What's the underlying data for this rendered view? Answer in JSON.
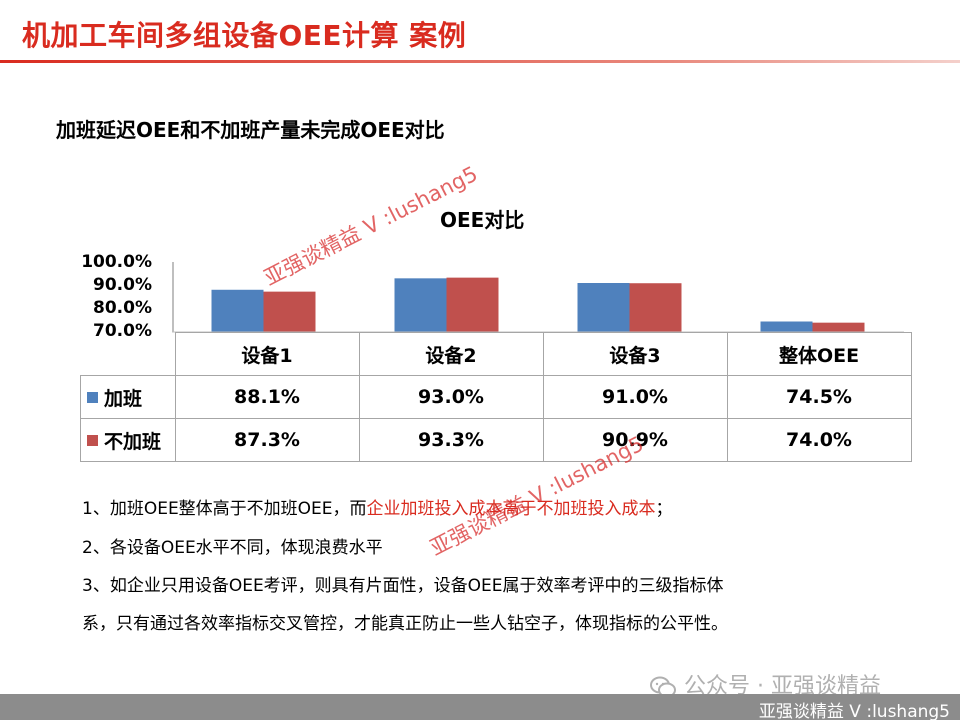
{
  "header": {
    "title": "机加工车间多组设备OEE计算 案例"
  },
  "subtitle": "加班延迟OEE和不加班产量未完成OEE对比",
  "chart_data": {
    "type": "bar",
    "title": "OEE对比",
    "categories": [
      "设备1",
      "设备2",
      "设备3",
      "整体OEE"
    ],
    "ylim": [
      0.7,
      1.0
    ],
    "yticks": [
      "100.0%",
      "90.0%",
      "80.0%",
      "70.0%"
    ],
    "series": [
      {
        "name": "加班",
        "color": "#4f81bd",
        "values": [
          0.881,
          0.93,
          0.91,
          0.745
        ],
        "labels": [
          "88.1%",
          "93.0%",
          "91.0%",
          "74.5%"
        ]
      },
      {
        "name": "不加班",
        "color": "#c0504d",
        "values": [
          0.873,
          0.933,
          0.909,
          0.74
        ],
        "labels": [
          "87.3%",
          "93.3%",
          "90.9%",
          "74.0%"
        ]
      }
    ],
    "legend": "data-table",
    "grid": false
  },
  "notes": {
    "n1_a": "1、加班OEE整体高于不加班OEE，而",
    "n1_b": "企业加班投入成本高于不加班投入成本",
    "n1_c": "；",
    "n2": "2、各设备OEE水平不同，体现浪费水平",
    "n3_l1": "3、如企业只用设备OEE考评，则具有片面性，设备OEE属于效率考评中的三级指标体",
    "n3_l2": "系，只有通过各效率指标交叉管控，才能真正防止一些人钻空子，体现指标的公平性。"
  },
  "watermark": {
    "text": "亚强谈精益 V  :lushang5",
    "color": "#d72828"
  },
  "wechat_label": "公众号 · 亚强谈精益",
  "footer_text": "亚强谈精益 V  :lushang5"
}
